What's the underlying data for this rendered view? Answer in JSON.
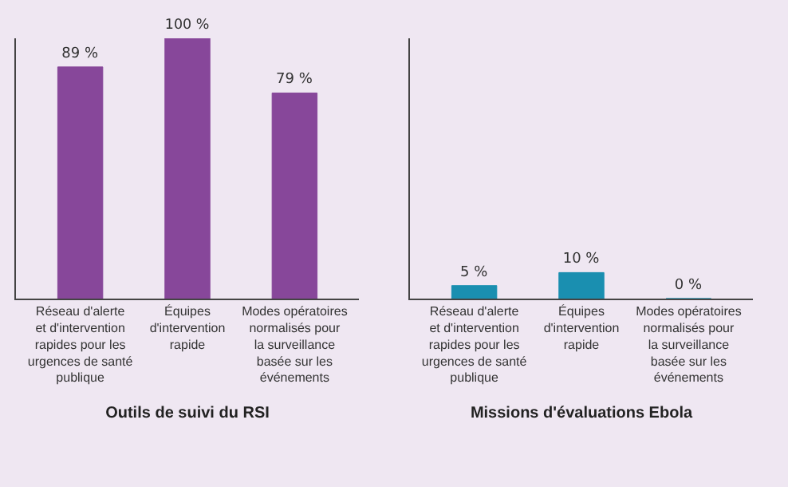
{
  "chart_data": [
    {
      "type": "bar",
      "xlabel": "Outils de suivi du RSI",
      "categories": [
        "Réseau d'alerte et d'intervention rapides pour les urgences de santé publique",
        "Équipes d'intervention rapide",
        "Modes opératoires normalisés pour la surveillance basée sur les événements"
      ],
      "values": [
        89,
        100,
        79
      ],
      "color": "#87479a",
      "value_labels": [
        "89 %",
        "100 %",
        "79 %"
      ],
      "grid": false,
      "legend": false
    },
    {
      "type": "bar",
      "xlabel": "Missions d'évaluations Ebola",
      "categories": [
        "Réseau d'alerte et d'intervention rapides pour les urgences de santé publique",
        "Équipes d'intervention rapide",
        "Modes opératoires normalisés pour la surveillance basée sur les événements"
      ],
      "values": [
        5,
        10,
        0
      ],
      "color": "#1a8fb0",
      "value_labels": [
        "5 %",
        "10 %",
        "0 %"
      ],
      "grid": false,
      "legend": false
    }
  ]
}
